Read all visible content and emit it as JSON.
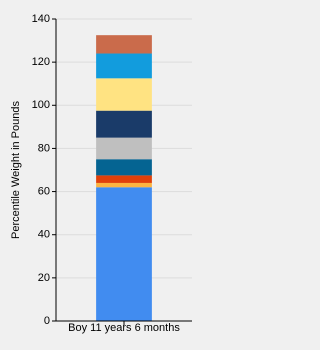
{
  "chart_data": {
    "type": "stacked-bar",
    "y_label": "Percentile Weight in Pounds",
    "categories": [
      "Boy 11 years 6 months"
    ],
    "series": [
      {
        "color": "#418cf0",
        "values": [
          62
        ]
      },
      {
        "color": "#fcb441",
        "values": [
          2
        ]
      },
      {
        "color": "#e0400a",
        "values": [
          3.5
        ]
      },
      {
        "color": "#056492",
        "values": [
          7.5
        ]
      },
      {
        "color": "#bfbfbf",
        "values": [
          10
        ]
      },
      {
        "color": "#1a3b69",
        "values": [
          12.5
        ]
      },
      {
        "color": "#ffe382",
        "values": [
          15
        ]
      },
      {
        "color": "#129cdd",
        "values": [
          11.5
        ]
      },
      {
        "color": "#ca6b4b",
        "values": [
          8.5
        ]
      }
    ],
    "ylim": [
      0,
      140
    ],
    "yticks": [
      0,
      20,
      40,
      60,
      80,
      100,
      120,
      140
    ],
    "grid": true
  }
}
